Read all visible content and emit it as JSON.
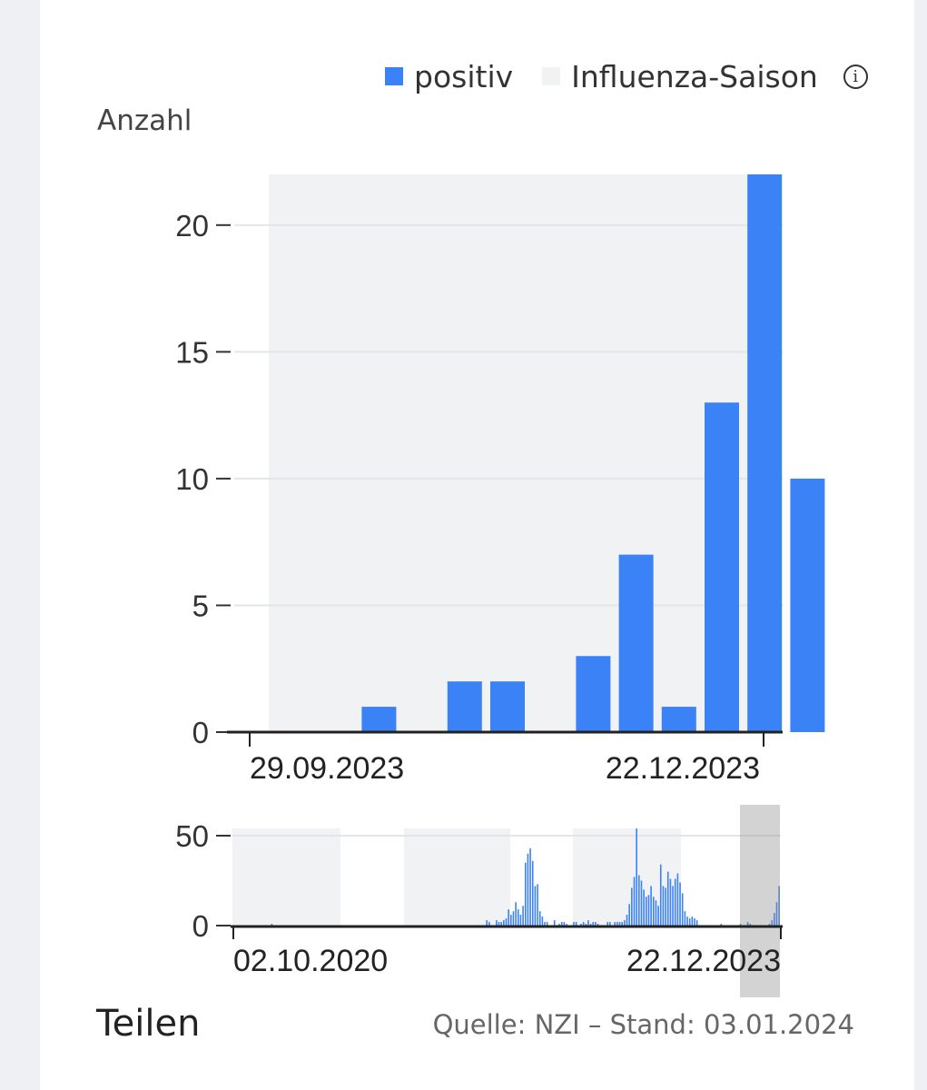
{
  "legend": {
    "items": [
      {
        "label": "positiv",
        "color": "#3b82f6"
      },
      {
        "label": "Influenza-Saison",
        "color": "#f1f2f4"
      }
    ],
    "info_icon": "info-icon"
  },
  "footer": {
    "share_label": "Teilen",
    "source_text": "Quelle: NZI – Stand: 03.01.2024"
  },
  "chart_data": [
    {
      "type": "bar",
      "ylabel": "Anzahl",
      "ylim": [
        0,
        22
      ],
      "yticks": [
        0,
        5,
        10,
        15,
        20
      ],
      "x_ticks": [
        "29.09.2023",
        "22.12.2023"
      ],
      "series": [
        {
          "name": "positiv",
          "values": [
            0,
            0,
            1,
            0,
            2,
            2,
            0,
            3,
            7,
            1,
            13,
            22,
            10
          ]
        }
      ],
      "influenza_season": "background",
      "grid": "horizontal",
      "legend_position": "top-right"
    },
    {
      "type": "bar",
      "ylim": [
        0,
        55
      ],
      "yticks": [
        0,
        50
      ],
      "x_ticks": [
        "02.10.2020",
        "22.12.2023"
      ],
      "series": [
        {
          "name": "positiv",
          "values": [
            0,
            0,
            0,
            0,
            0,
            0,
            0,
            0,
            0,
            0,
            0,
            0,
            0,
            0,
            0,
            0,
            1,
            0,
            0,
            0,
            0,
            0,
            0,
            0,
            0,
            0,
            0,
            0,
            0,
            0,
            0,
            0,
            0,
            0,
            0,
            0,
            0,
            0,
            0,
            0,
            0,
            0,
            0,
            0,
            0,
            0,
            0,
            0,
            0,
            0,
            0,
            0,
            0,
            0,
            0,
            0,
            0,
            0,
            0,
            0,
            0,
            0,
            0,
            0,
            0,
            0,
            0,
            0,
            0,
            0,
            0,
            0,
            0,
            0,
            0,
            0,
            0,
            0,
            0,
            0,
            0,
            0,
            0,
            0,
            0,
            0,
            0,
            0,
            0,
            0,
            0,
            0,
            0,
            0,
            0,
            0,
            0,
            0,
            0,
            0,
            0,
            0,
            0,
            0,
            0,
            3,
            2,
            0,
            0,
            3,
            2,
            2,
            3,
            4,
            9,
            6,
            8,
            13,
            9,
            6,
            11,
            35,
            40,
            43,
            36,
            22,
            23,
            8,
            5,
            2,
            2,
            0,
            0,
            3,
            0,
            1,
            2,
            2,
            1,
            0,
            0,
            2,
            2,
            0,
            1,
            2,
            1,
            3,
            1,
            2,
            2,
            1,
            0,
            0,
            0,
            2,
            2,
            0,
            2,
            2,
            2,
            2,
            3,
            6,
            12,
            21,
            27,
            54,
            28,
            25,
            20,
            16,
            17,
            22,
            16,
            14,
            11,
            34,
            22,
            21,
            30,
            26,
            22,
            26,
            29,
            24,
            18,
            8,
            5,
            4,
            5,
            4,
            3,
            0,
            0,
            0,
            0,
            0,
            0,
            0,
            0,
            0,
            1,
            0,
            0,
            0,
            0,
            0,
            0,
            0,
            1,
            0,
            0,
            2,
            1,
            0,
            0,
            0,
            0,
            0,
            0,
            0,
            1,
            3,
            7,
            13,
            22
          ]
        }
      ],
      "influenza_season": "background",
      "selected_range": [
        "29.09.2023",
        "03.01.2024"
      ],
      "grid": "horizontal"
    }
  ]
}
